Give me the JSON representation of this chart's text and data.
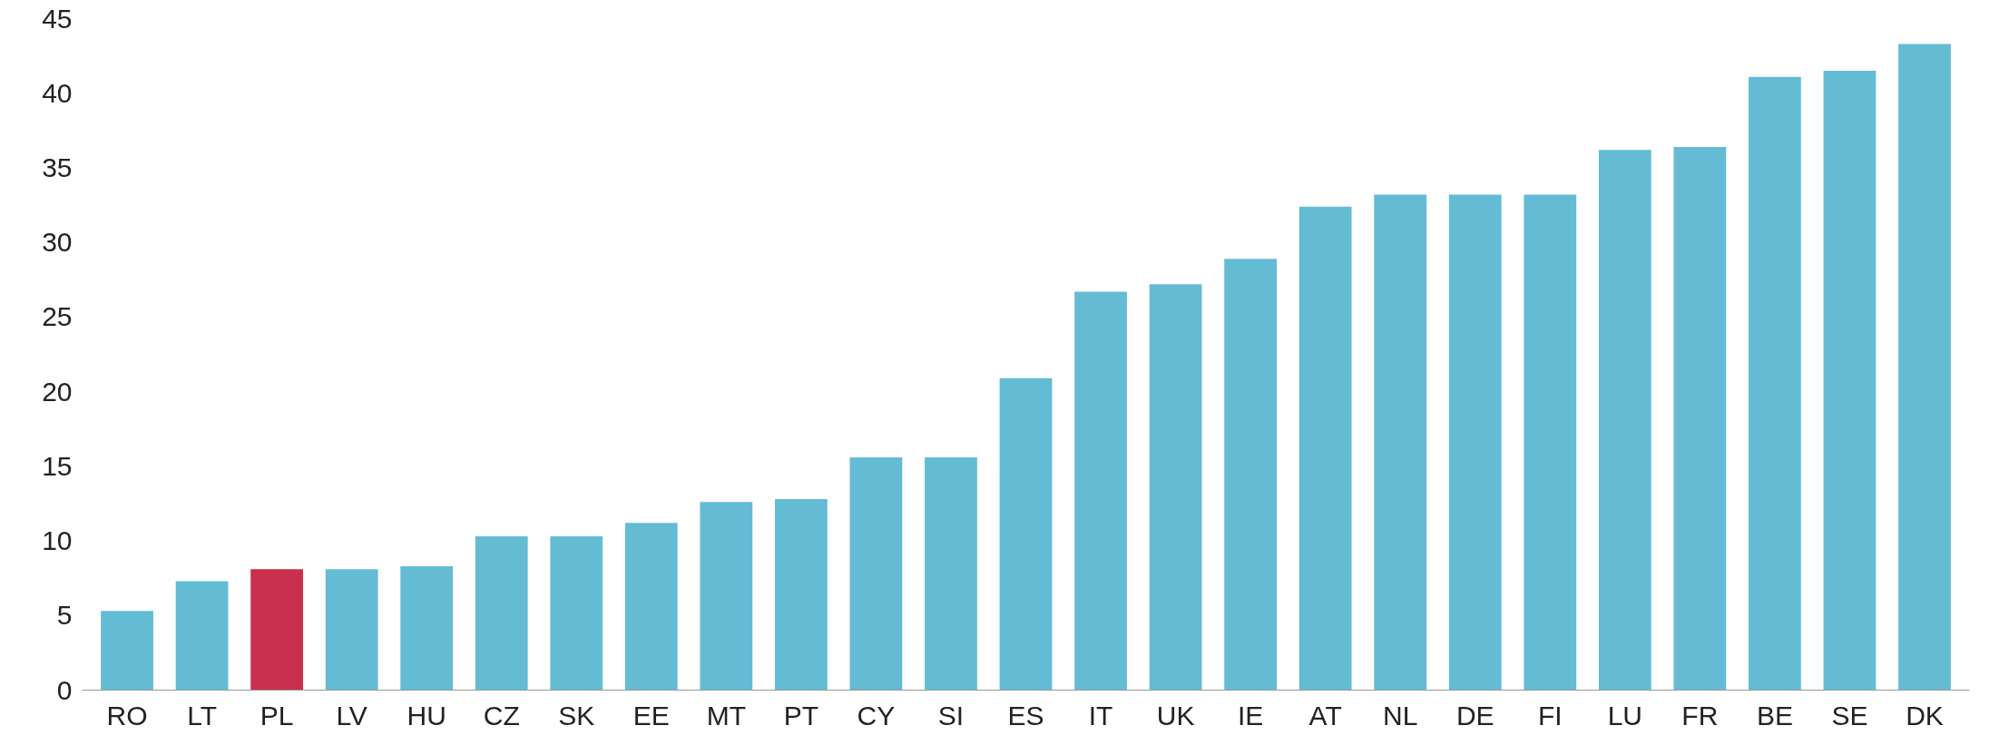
{
  "chart_data": {
    "type": "bar",
    "categories": [
      "RO",
      "LT",
      "PL",
      "LV",
      "HU",
      "CZ",
      "SK",
      "EE",
      "MT",
      "PT",
      "CY",
      "SI",
      "ES",
      "IT",
      "UK",
      "IE",
      "AT",
      "NL",
      "DE",
      "FI",
      "LU",
      "FR",
      "BE",
      "SE",
      "DK"
    ],
    "values": [
      5.3,
      7.3,
      8.1,
      8.1,
      8.3,
      10.3,
      10.3,
      11.2,
      12.6,
      12.8,
      15.6,
      15.6,
      20.9,
      26.7,
      27.2,
      28.9,
      32.4,
      33.2,
      33.2,
      33.2,
      36.2,
      36.4,
      41.1,
      41.5,
      43.3
    ],
    "colors": [
      "#63bcd3",
      "#63bcd3",
      "#c8304d",
      "#63bcd3",
      "#63bcd3",
      "#63bcd3",
      "#63bcd3",
      "#63bcd3",
      "#63bcd3",
      "#63bcd3",
      "#63bcd3",
      "#63bcd3",
      "#63bcd3",
      "#63bcd3",
      "#63bcd3",
      "#63bcd3",
      "#63bcd3",
      "#63bcd3",
      "#63bcd3",
      "#63bcd3",
      "#63bcd3",
      "#63bcd3",
      "#63bcd3",
      "#63bcd3",
      "#63bcd3"
    ],
    "ylim": [
      0,
      45
    ],
    "yticks": [
      0,
      5,
      10,
      15,
      20,
      25,
      30,
      35,
      40,
      45
    ],
    "grid": false
  }
}
